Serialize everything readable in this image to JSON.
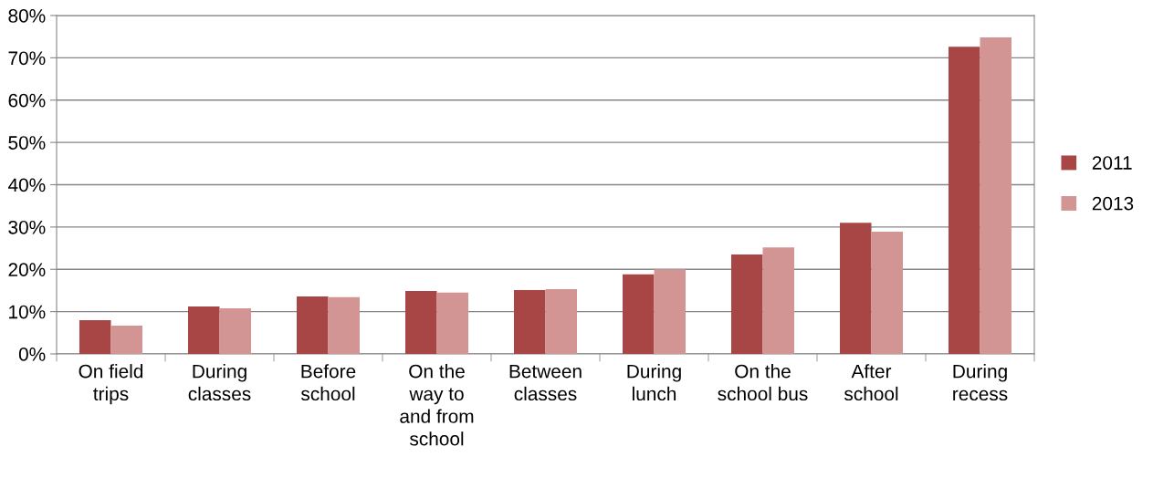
{
  "chart_data": {
    "type": "bar",
    "categories": [
      "On field\ntrips",
      "During\nclasses",
      "Before\nschool",
      "On the\nway to\nand from\nschool",
      "Between\nclasses",
      "During\nlunch",
      "On the\nschool bus",
      "After\nschool",
      "During\nrecess"
    ],
    "series": [
      {
        "name": "2011",
        "color": "#a84646",
        "values": [
          8.0,
          11.2,
          13.6,
          14.9,
          15.1,
          18.8,
          23.5,
          31.0,
          72.6
        ]
      },
      {
        "name": "2013",
        "color": "#d39593",
        "values": [
          6.7,
          10.8,
          13.4,
          14.5,
          15.3,
          20.0,
          25.2,
          28.9,
          74.8
        ]
      }
    ],
    "ylim": [
      0,
      80
    ],
    "yticks": [
      {
        "value": 0,
        "label": "0%"
      },
      {
        "value": 10,
        "label": "10%"
      },
      {
        "value": 20,
        "label": "20%"
      },
      {
        "value": 30,
        "label": "30%"
      },
      {
        "value": 40,
        "label": "40%"
      },
      {
        "value": 50,
        "label": "50%"
      },
      {
        "value": 60,
        "label": "60%"
      },
      {
        "value": 70,
        "label": "70%"
      },
      {
        "value": 80,
        "label": "80%"
      }
    ],
    "grid": "y",
    "legend": "right"
  }
}
